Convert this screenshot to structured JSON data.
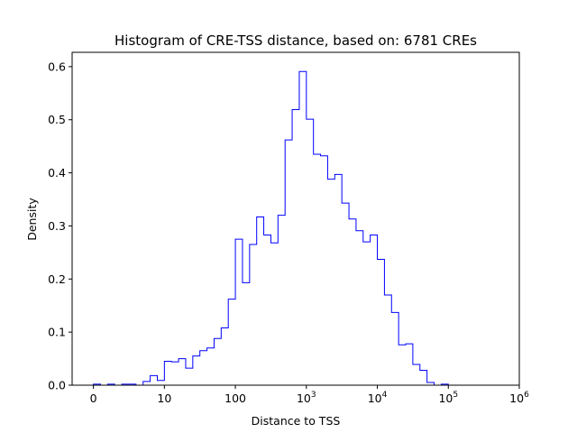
{
  "chart_data": {
    "type": "histogram",
    "title": "Histogram of CRE-TSS distance, based on: 6781 CREs",
    "xlabel": "Distance to TSS",
    "ylabel": "Density",
    "x_scale": "log10(distance+1)",
    "xlim": [
      -0.3,
      6.0
    ],
    "ylim": [
      0,
      0.6
    ],
    "grid": false,
    "series_color": "#0000ff",
    "x_ticks": [
      {
        "value": 0,
        "label": "0",
        "exp": ""
      },
      {
        "value": 1,
        "label": "10",
        "exp": ""
      },
      {
        "value": 2,
        "label": "100",
        "exp": ""
      },
      {
        "value": 3,
        "label": "10",
        "exp": "3"
      },
      {
        "value": 4,
        "label": "10",
        "exp": "4"
      },
      {
        "value": 5,
        "label": "10",
        "exp": "5"
      },
      {
        "value": 6,
        "label": "10",
        "exp": "6"
      }
    ],
    "y_ticks": [
      {
        "value": 0.0,
        "label": "0.0"
      },
      {
        "value": 0.1,
        "label": "0.1"
      },
      {
        "value": 0.2,
        "label": "0.2"
      },
      {
        "value": 0.3,
        "label": "0.3"
      },
      {
        "value": 0.4,
        "label": "0.4"
      },
      {
        "value": 0.5,
        "label": "0.5"
      },
      {
        "value": 0.6,
        "label": "0.6"
      }
    ],
    "bins": {
      "start": 0.0,
      "width": 0.1,
      "density": [
        0.002,
        0.0,
        0.002,
        0.0,
        0.002,
        0.002,
        0.0,
        0.007,
        0.018,
        0.009,
        0.045,
        0.044,
        0.05,
        0.032,
        0.055,
        0.065,
        0.07,
        0.088,
        0.108,
        0.162,
        0.275,
        0.193,
        0.265,
        0.317,
        0.283,
        0.268,
        0.32,
        0.462,
        0.519,
        0.591,
        0.501,
        0.435,
        0.432,
        0.388,
        0.397,
        0.343,
        0.313,
        0.291,
        0.27,
        0.283,
        0.237,
        0.17,
        0.137,
        0.076,
        0.078,
        0.039,
        0.028,
        0.005,
        0.0,
        0.002,
        0.0
      ]
    }
  }
}
